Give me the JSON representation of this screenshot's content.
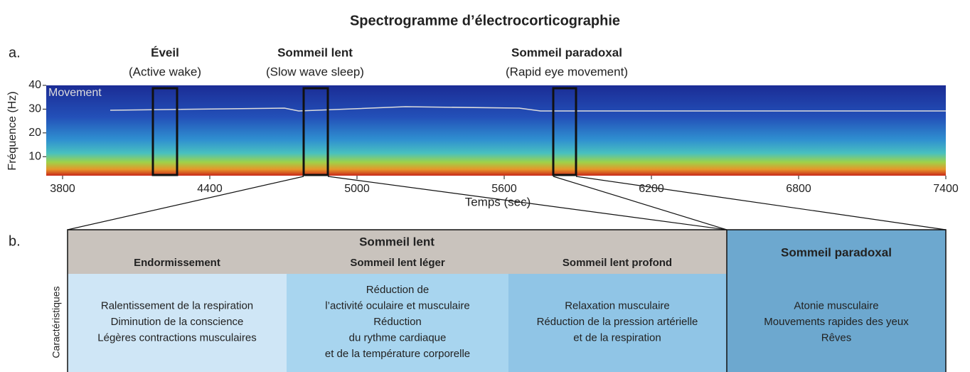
{
  "title": "Spectrogramme d’électrocorticographie",
  "panel_a": {
    "label": "a.",
    "states": [
      {
        "name": "Éveil",
        "subtitle": "(Active wake)"
      },
      {
        "name": "Sommeil lent",
        "subtitle": "(Slow wave sleep)"
      },
      {
        "name": "Sommeil paradoxal",
        "subtitle": "(Rapid eye movement)"
      }
    ],
    "trace_label": "Movement",
    "y_label": "Fréquence (Hz)",
    "x_label": "Temps (sec)",
    "xlim": [
      3800,
      7400
    ],
    "xticks": [
      3800,
      4400,
      5000,
      5600,
      6200,
      6800,
      7400
    ],
    "ylim": [
      2,
      40
    ],
    "yticks": [
      10,
      20,
      30,
      40
    ]
  },
  "panel_b": {
    "label": "b.",
    "row_label": "Caractéristiques",
    "slow_sleep": {
      "title": "Sommeil lent",
      "stages": [
        {
          "name": "Endormissement",
          "lines": [
            "Ralentissement de la respiration",
            "Diminution de la conscience",
            "Légères contractions musculaires"
          ]
        },
        {
          "name": "Sommeil lent léger",
          "lines": [
            "Réduction de",
            "l’activité oculaire et musculaire",
            "Réduction",
            "du rythme cardiaque",
            "et de la température corporelle"
          ]
        },
        {
          "name": "Sommeil lent profond",
          "lines": [
            "Relaxation musculaire",
            "Réduction de la pression artérielle",
            "et de la respiration"
          ]
        }
      ]
    },
    "paradoxal": {
      "title": "Sommeil paradoxal",
      "lines": [
        "Atonie musculaire",
        "Mouvements rapides des yeux",
        "Rêves"
      ]
    }
  }
}
